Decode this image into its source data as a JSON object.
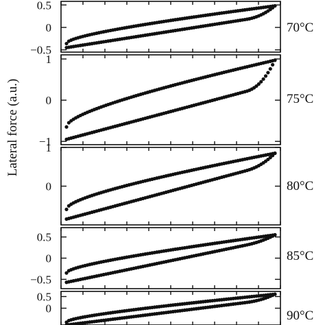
{
  "chart_data": {
    "type": "scatter",
    "ylabel": "Lateral force (a.u.)",
    "xlabel": "",
    "x_range": [
      0,
      1
    ],
    "panels": [
      {
        "temperature": "70°C",
        "ylim": [
          -0.55,
          0.58
        ],
        "yticks": [
          0.5,
          0,
          -0.5
        ],
        "ytick_labels": [
          "0.5",
          "0",
          "−0.5"
        ],
        "forward": {
          "start": -0.36,
          "end": 0.48,
          "curvature": 0.55
        },
        "backward": {
          "start": -0.45,
          "end": 0.28,
          "curvature": 0.0,
          "hook": 0.2
        }
      },
      {
        "temperature": "75°C",
        "ylim": [
          -1.08,
          1.1
        ],
        "yticks": [
          1,
          0,
          -1
        ],
        "ytick_labels": [
          "1",
          "0",
          "−1"
        ],
        "forward": {
          "start": -0.65,
          "end": 0.97,
          "curvature": 0.55
        },
        "backward": {
          "start": -0.95,
          "end": 0.4,
          "curvature": 0.0,
          "hook": 0.55
        }
      },
      {
        "temperature": "80°C",
        "ylim": [
          -1.0,
          1.0
        ],
        "yticks": [
          1,
          0
        ],
        "ytick_labels": [
          "1",
          "0"
        ],
        "forward": {
          "start": -0.6,
          "end": 0.85,
          "curvature": 0.55
        },
        "backward": {
          "start": -0.85,
          "end": 0.6,
          "curvature": 0.0,
          "hook": 0.25
        }
      },
      {
        "temperature": "85°C",
        "ylim": [
          -0.72,
          0.72
        ],
        "yticks": [
          0.5,
          0,
          -0.5
        ],
        "ytick_labels": [
          "0.5",
          "0",
          "−0.5"
        ],
        "forward": {
          "start": -0.35,
          "end": 0.55,
          "curvature": 0.5
        },
        "backward": {
          "start": -0.57,
          "end": 0.45,
          "curvature": 0.0,
          "hook": 0.1
        }
      },
      {
        "temperature": "90°C",
        "ylim": [
          -0.72,
          0.72
        ],
        "yticks": [
          0.5,
          0
        ],
        "ytick_labels": [
          "0.5",
          "0"
        ],
        "forward": {
          "start": -0.6,
          "end": 0.6,
          "curvature": 0.5
        },
        "backward": {
          "start": -0.72,
          "end": 0.4,
          "curvature": 0.0,
          "hook": 0.2
        }
      }
    ]
  }
}
